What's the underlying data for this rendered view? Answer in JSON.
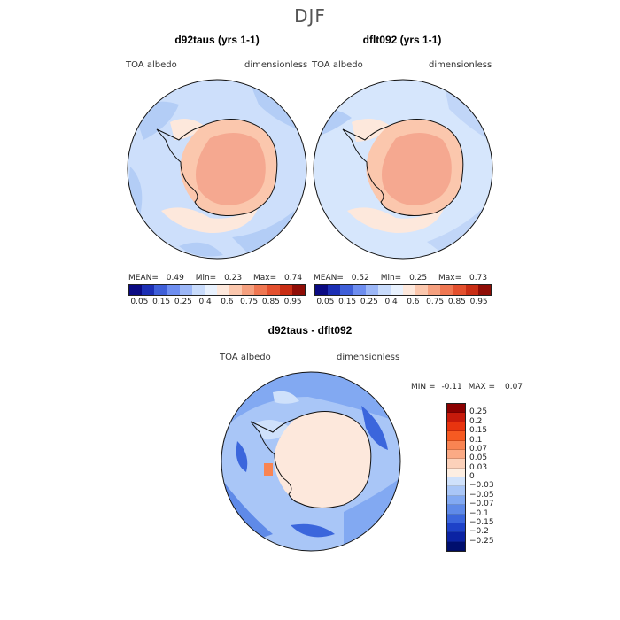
{
  "figure": {
    "title": "DJF"
  },
  "panels": [
    {
      "title": "d92taus (yrs 1-1)",
      "variable": "TOA albedo",
      "units": "dimensionless",
      "mean_label": "MEAN=",
      "mean": "0.49",
      "min_label": "Min=",
      "min": "0.23",
      "max_label": "Max=",
      "max": "0.74"
    },
    {
      "title": "dflt092 (yrs 1-1)",
      "variable": "TOA albedo",
      "units": "dimensionless",
      "mean_label": "MEAN=",
      "mean": "0.52",
      "min_label": "Min=",
      "min": "0.25",
      "max_label": "Max=",
      "max": "0.73"
    }
  ],
  "colorbar_top": {
    "labels": [
      "0.05",
      "0.15",
      "0.25",
      "0.4",
      "0.6",
      "0.75",
      "0.85",
      "0.95"
    ],
    "colors": [
      "#0a0a82",
      "#1c2fb4",
      "#3f5fd8",
      "#6e8ef0",
      "#9cb7f7",
      "#c8dbfb",
      "#e8f1fd",
      "#fde8dc",
      "#fbc7ad",
      "#f5a07f",
      "#ef7752",
      "#e3502e",
      "#c82d14",
      "#8f0d06"
    ]
  },
  "diff_panel": {
    "title": "d92taus - dflt092",
    "variable": "TOA albedo",
    "units": "dimensionless",
    "min_label": "MIN =",
    "min": "-0.11",
    "max_label": "MAX =",
    "max": "0.07"
  },
  "colorbar_diff": {
    "labels": [
      "0.25",
      "0.2",
      "0.15",
      "0.1",
      "0.07",
      "0.05",
      "0.03",
      "0",
      "−0.03",
      "−0.05",
      "−0.07",
      "−0.1",
      "−0.15",
      "−0.2",
      "−0.25"
    ],
    "colors": [
      "#8b0000",
      "#c61a0b",
      "#e8340f",
      "#f65a22",
      "#f98452",
      "#fbaa85",
      "#fcd1ba",
      "#fdeee2",
      "#cfe1fb",
      "#a9c6f7",
      "#82a9f2",
      "#5f8ae8",
      "#3b66dc",
      "#1e42c8",
      "#0b23a3",
      "#000f6e"
    ]
  }
}
